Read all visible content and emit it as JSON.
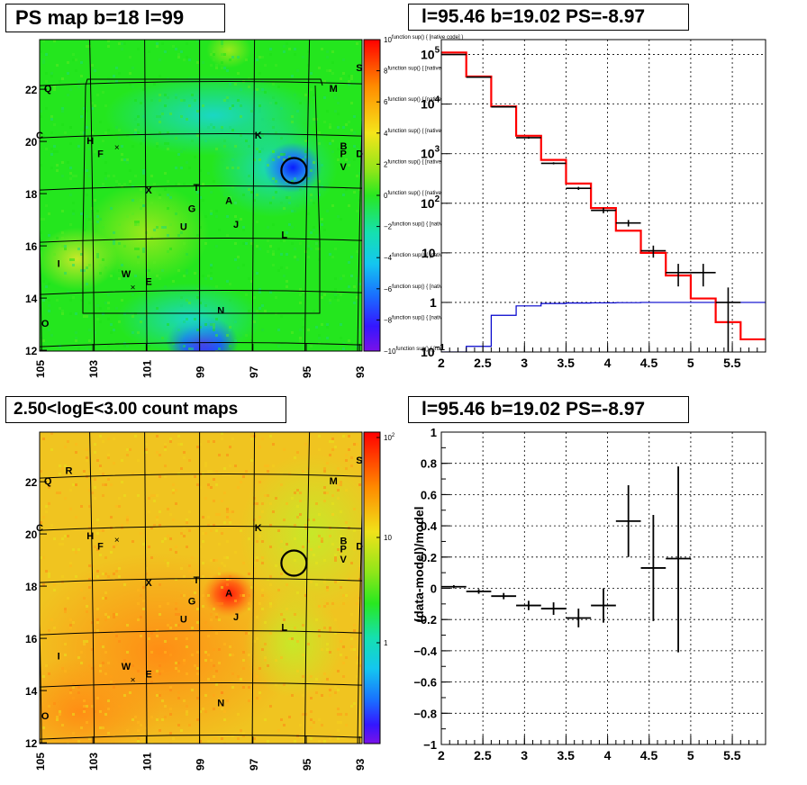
{
  "panels": {
    "top_left_title": "PS map b=18 l=99",
    "top_right_title": "l=95.46 b=19.02 PS=-8.97",
    "bottom_left_title": "2.50<logE<3.00 count maps",
    "bottom_right_title": "l=95.46 b=19.02 PS=-8.97"
  },
  "colors": {
    "data": "#000000",
    "model": "#ff0000",
    "background_model": "#0000cc",
    "grid": "#000000"
  },
  "chart_data": [
    {
      "type": "heatmap",
      "title": "PS map b=18 l=99",
      "xticks": [
        "105",
        "103",
        "101",
        "99",
        "97",
        "95",
        "93"
      ],
      "yticks": [
        "12",
        "14",
        "16",
        "18",
        "20",
        "22"
      ],
      "colorbar_ticks": [
        "10",
        "8",
        "6",
        "4",
        "2",
        "0",
        "−2",
        "−4",
        "−6",
        "−8",
        "−10"
      ],
      "colorbar_range": [
        -10,
        10
      ],
      "sources": [
        {
          "label": "S",
          "l": 93.0,
          "b": 22.7
        },
        {
          "label": "Q",
          "l": 104.7,
          "b": 21.9
        },
        {
          "label": "M",
          "l": 94.0,
          "b": 21.9
        },
        {
          "label": "C",
          "l": 105.0,
          "b": 20.1
        },
        {
          "label": "K",
          "l": 96.8,
          "b": 20.1
        },
        {
          "label": "H",
          "l": 103.1,
          "b": 19.9
        },
        {
          "label": "B",
          "l": 93.6,
          "b": 19.7
        },
        {
          "label": "P",
          "l": 93.6,
          "b": 19.4
        },
        {
          "label": "D",
          "l": 93.0,
          "b": 19.4
        },
        {
          "label": "F",
          "l": 102.7,
          "b": 19.4
        },
        {
          "label": "V",
          "l": 93.6,
          "b": 18.9
        },
        {
          "label": "X",
          "l": 100.9,
          "b": 18.0
        },
        {
          "label": "T",
          "l": 99.1,
          "b": 18.1
        },
        {
          "label": "A",
          "l": 97.9,
          "b": 17.6
        },
        {
          "label": "G",
          "l": 99.3,
          "b": 17.3
        },
        {
          "label": "U",
          "l": 99.6,
          "b": 16.6
        },
        {
          "label": "J",
          "l": 97.6,
          "b": 16.7
        },
        {
          "label": "L",
          "l": 95.8,
          "b": 16.3
        },
        {
          "label": "I",
          "l": 104.2,
          "b": 15.2
        },
        {
          "label": "W",
          "l": 101.8,
          "b": 14.8
        },
        {
          "label": "E",
          "l": 100.9,
          "b": 14.5
        },
        {
          "label": "N",
          "l": 98.2,
          "b": 13.4
        },
        {
          "label": "O",
          "l": 104.8,
          "b": 12.9
        }
      ],
      "circle_position": {
        "l": 95.46,
        "b": 19.02
      }
    },
    {
      "type": "line",
      "title": "l=95.46 b=19.02 PS=-8.97",
      "xlim": [
        2.0,
        5.9
      ],
      "ylim": [
        0.1,
        200000
      ],
      "y_scale": "log",
      "grid": true,
      "xticks": [
        "2",
        "2.5",
        "3",
        "3.5",
        "4",
        "4.5",
        "5",
        "5.5"
      ],
      "yticks": [
        {
          "exp": "5",
          "v": 100000
        },
        {
          "exp": "4",
          "v": 10000
        },
        {
          "exp": "3",
          "v": 1000
        },
        {
          "exp": "2",
          "v": 100
        },
        {
          "label": "10",
          "v": 10
        },
        {
          "label": "1",
          "v": 1
        },
        {
          "exp": "−1",
          "v": 0.1
        }
      ],
      "bin_edges": [
        2.0,
        2.3,
        2.6,
        2.9,
        3.2,
        3.5,
        3.8,
        4.1,
        4.4,
        4.7,
        5.0,
        5.3,
        5.6,
        5.9
      ],
      "series": [
        {
          "values": [
            110000,
            36000,
            9000,
            2300,
            750,
            250,
            80,
            28,
            10,
            3.5,
            1.2,
            0.4,
            0.18
          ]
        },
        {
          "values": [
            0.1,
            0.13,
            0.55,
            0.85,
            0.95,
            0.97,
            0.98,
            0.99,
            1.0,
            1.0,
            1.0,
            1.0,
            1.0
          ]
        }
      ],
      "points": [
        {
          "x": 2.15,
          "y": 100000,
          "ylo": 98000,
          "yhi": 102000
        },
        {
          "x": 2.45,
          "y": 35000,
          "ylo": 34000,
          "yhi": 36000
        },
        {
          "x": 2.75,
          "y": 8800,
          "ylo": 8600,
          "yhi": 9000
        },
        {
          "x": 3.05,
          "y": 2100,
          "ylo": 2000,
          "yhi": 2200
        },
        {
          "x": 3.35,
          "y": 640,
          "ylo": 610,
          "yhi": 670
        },
        {
          "x": 3.65,
          "y": 200,
          "ylo": 186,
          "yhi": 214
        },
        {
          "x": 3.95,
          "y": 72,
          "ylo": 63,
          "yhi": 81
        },
        {
          "x": 4.25,
          "y": 40,
          "ylo": 34,
          "yhi": 46
        },
        {
          "x": 4.55,
          "y": 11,
          "ylo": 8,
          "yhi": 14
        },
        {
          "x": 4.85,
          "y": 4,
          "ylo": 2.1,
          "yhi": 6
        },
        {
          "x": 5.15,
          "y": 4,
          "ylo": 2.1,
          "yhi": 6
        },
        {
          "x": 5.45,
          "y": 1,
          "ylo": 0.1,
          "yhi": 2.0
        }
      ]
    },
    {
      "type": "heatmap",
      "title": "2.50<logE<3.00 count maps",
      "xticks": [
        "105",
        "103",
        "101",
        "99",
        "97",
        "95",
        "93"
      ],
      "yticks": [
        "12",
        "14",
        "16",
        "18",
        "20",
        "22"
      ],
      "colorbar_ticks": [
        {
          "label": "10",
          "sup": "2"
        },
        {
          "label": "10",
          "sup": ""
        },
        {
          "label": "1",
          "sup": ""
        }
      ],
      "colorbar_scale": "log",
      "sources": [
        {
          "label": "S",
          "l": 93.0,
          "b": 22.7
        },
        {
          "label": "R",
          "l": 103.9,
          "b": 22.3
        },
        {
          "label": "Q",
          "l": 104.7,
          "b": 21.9
        },
        {
          "label": "M",
          "l": 94.0,
          "b": 21.9
        },
        {
          "label": "C",
          "l": 105.0,
          "b": 20.1
        },
        {
          "label": "K",
          "l": 96.8,
          "b": 20.1
        },
        {
          "label": "H",
          "l": 103.1,
          "b": 19.8
        },
        {
          "label": "B",
          "l": 93.6,
          "b": 19.6
        },
        {
          "label": "P",
          "l": 93.6,
          "b": 19.3
        },
        {
          "label": "D",
          "l": 93.0,
          "b": 19.4
        },
        {
          "label": "F",
          "l": 102.7,
          "b": 19.4
        },
        {
          "label": "V",
          "l": 93.6,
          "b": 18.9
        },
        {
          "label": "X",
          "l": 100.9,
          "b": 18.0
        },
        {
          "label": "T",
          "l": 99.1,
          "b": 18.1
        },
        {
          "label": "A",
          "l": 97.9,
          "b": 17.6
        },
        {
          "label": "G",
          "l": 99.3,
          "b": 17.3
        },
        {
          "label": "U",
          "l": 99.6,
          "b": 16.6
        },
        {
          "label": "J",
          "l": 97.6,
          "b": 16.7
        },
        {
          "label": "L",
          "l": 95.8,
          "b": 16.3
        },
        {
          "label": "I",
          "l": 104.2,
          "b": 15.2
        },
        {
          "label": "W",
          "l": 101.8,
          "b": 14.8
        },
        {
          "label": "E",
          "l": 100.9,
          "b": 14.5
        },
        {
          "label": "N",
          "l": 98.2,
          "b": 13.4
        },
        {
          "label": "O",
          "l": 104.8,
          "b": 12.9
        }
      ],
      "circle_position": {
        "l": 95.46,
        "b": 19.02
      }
    },
    {
      "type": "scatter",
      "title": "l=95.46 b=19.02 PS=-8.97",
      "ylabel": "(data-model)/model",
      "xlim": [
        2.0,
        5.9
      ],
      "ylim": [
        -1,
        1
      ],
      "grid": true,
      "xticks": [
        "2",
        "2.5",
        "3",
        "3.5",
        "4",
        "4.5",
        "5",
        "5.5"
      ],
      "yticks": [
        "1",
        "0.8",
        "0.6",
        "0.4",
        "0.2",
        "0",
        "−0.2",
        "−0.4",
        "−0.6",
        "−0.8",
        "−1"
      ],
      "points": [
        {
          "x": 2.15,
          "y": 0.01,
          "xerr": 0.15,
          "ylo": 0.0,
          "yhi": 0.02
        },
        {
          "x": 2.45,
          "y": -0.02,
          "xerr": 0.15,
          "ylo": -0.035,
          "yhi": -0.005
        },
        {
          "x": 2.75,
          "y": -0.05,
          "xerr": 0.15,
          "ylo": -0.07,
          "yhi": -0.03
        },
        {
          "x": 3.05,
          "y": -0.11,
          "xerr": 0.15,
          "ylo": -0.14,
          "yhi": -0.08
        },
        {
          "x": 3.35,
          "y": -0.13,
          "xerr": 0.15,
          "ylo": -0.17,
          "yhi": -0.09
        },
        {
          "x": 3.65,
          "y": -0.19,
          "xerr": 0.15,
          "ylo": -0.25,
          "yhi": -0.13
        },
        {
          "x": 3.95,
          "y": -0.11,
          "xerr": 0.15,
          "ylo": -0.22,
          "yhi": 0.0
        },
        {
          "x": 4.25,
          "y": 0.43,
          "xerr": 0.15,
          "ylo": 0.2,
          "yhi": 0.66
        },
        {
          "x": 4.55,
          "y": 0.13,
          "xerr": 0.15,
          "ylo": -0.21,
          "yhi": 0.47
        },
        {
          "x": 4.85,
          "y": 0.19,
          "xerr": 0.15,
          "ylo": -0.41,
          "yhi": 0.78
        }
      ]
    }
  ]
}
